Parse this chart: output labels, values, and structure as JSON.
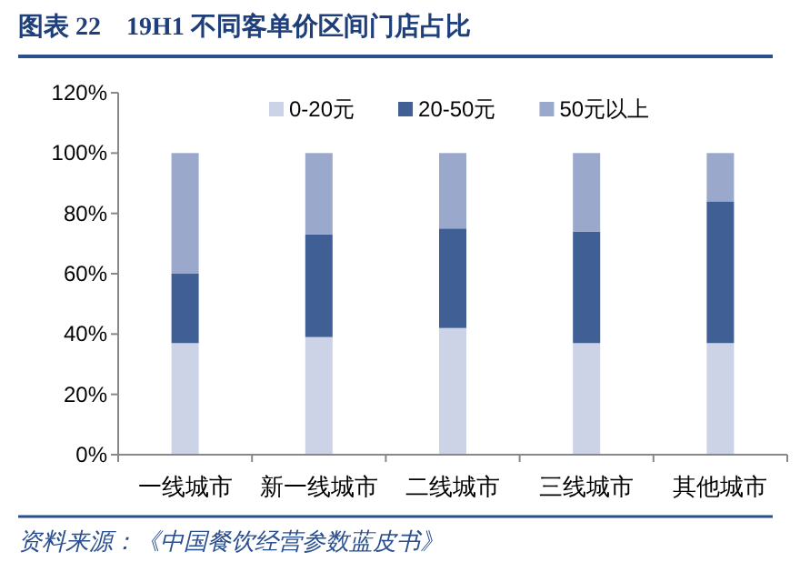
{
  "chart_data": {
    "type": "bar",
    "stacked": true,
    "title": "图表 22　19H1 不同客单价区间门店占比",
    "categories": [
      "一线城市",
      "新一线城市",
      "二线城市",
      "三线城市",
      "其他城市"
    ],
    "series": [
      {
        "name": "0-20元",
        "color": "#ccd3e6",
        "values": [
          37,
          39,
          42,
          37,
          37
        ]
      },
      {
        "name": "20-50元",
        "color": "#3f5f95",
        "values": [
          23,
          34,
          33,
          37,
          47
        ]
      },
      {
        "name": "50元以上",
        "color": "#9aa8cb",
        "values": [
          40,
          27,
          25,
          26,
          16
        ]
      }
    ],
    "ylim": [
      0,
      120
    ],
    "yticks": [
      {
        "value": 0,
        "label": "0%"
      },
      {
        "value": 20,
        "label": "20%"
      },
      {
        "value": 40,
        "label": "40%"
      },
      {
        "value": 60,
        "label": "60%"
      },
      {
        "value": 80,
        "label": "80%"
      },
      {
        "value": 100,
        "label": "100%"
      },
      {
        "value": 120,
        "label": "120%"
      }
    ],
    "grid": false,
    "legend": "top",
    "annotations": [
      "资料来源：《中国餐饮经营参数蓝皮书》"
    ]
  }
}
